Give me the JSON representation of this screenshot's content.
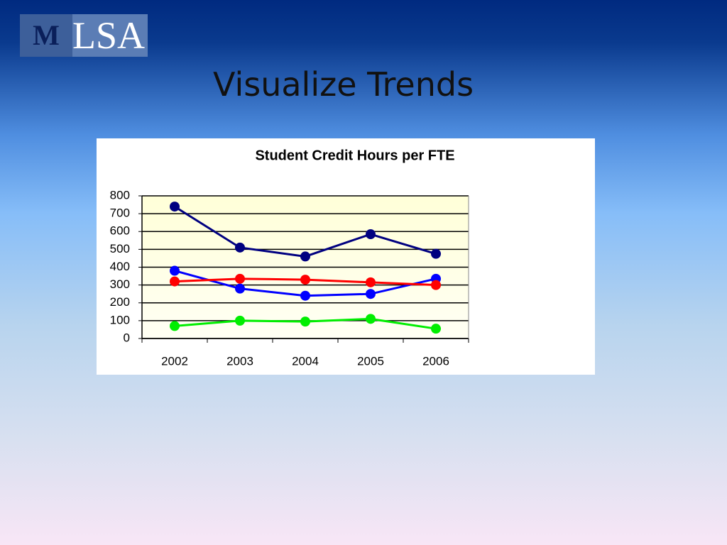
{
  "slide": {
    "logo_m": "M",
    "logo_text": "LSA",
    "title": "Visualize Trends"
  },
  "chart_data": {
    "type": "line",
    "title": "Student Credit Hours per FTE",
    "categories": [
      "2002",
      "2003",
      "2004",
      "2005",
      "2006"
    ],
    "series": [
      {
        "color": "#000080",
        "values": [
          740,
          510,
          460,
          585,
          475
        ]
      },
      {
        "color": "#0000ff",
        "values": [
          380,
          280,
          240,
          250,
          335
        ]
      },
      {
        "color": "#ff0000",
        "values": [
          320,
          335,
          330,
          315,
          300
        ]
      },
      {
        "color": "#00ee00",
        "values": [
          70,
          100,
          95,
          110,
          55
        ]
      }
    ],
    "ylim": [
      0,
      800
    ],
    "yticks": [
      0,
      100,
      200,
      300,
      400,
      500,
      600,
      700,
      800
    ],
    "grid": true
  }
}
